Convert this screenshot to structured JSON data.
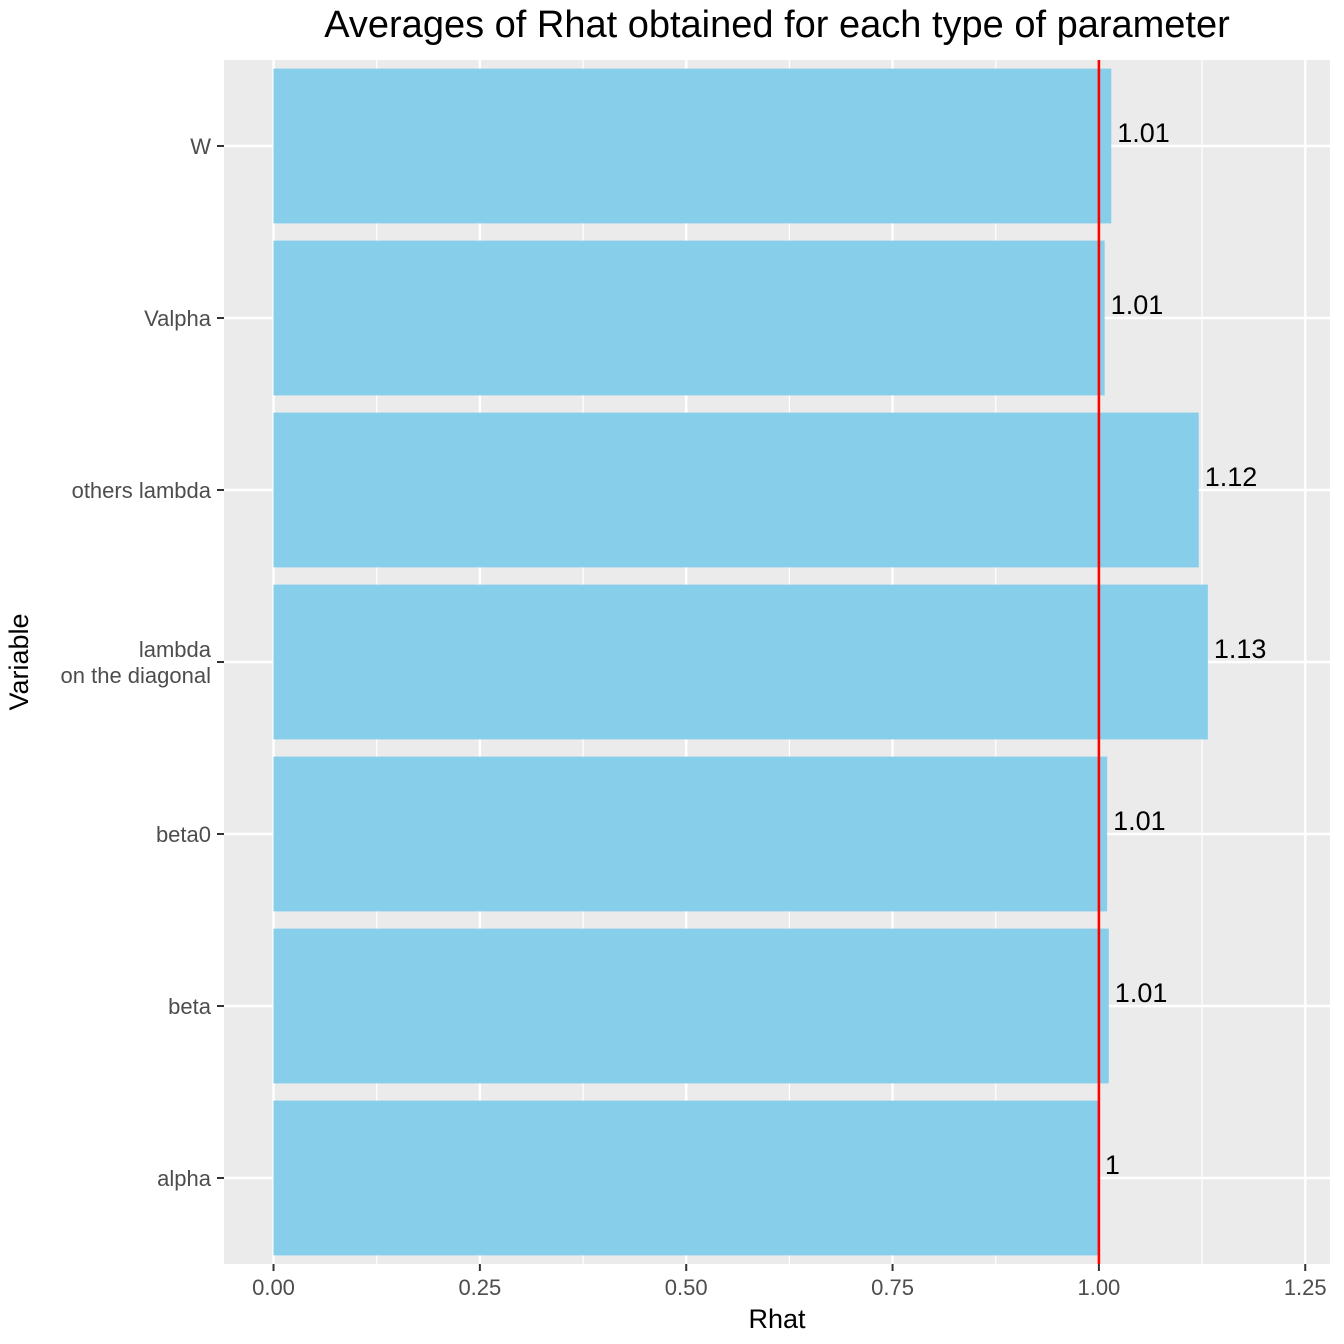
{
  "chart_data": {
    "type": "bar",
    "orientation": "horizontal",
    "title": "Averages of Rhat obtained for each type of parameter",
    "xlabel": "Rhat",
    "ylabel": "Variable",
    "categories": [
      [
        "alpha"
      ],
      [
        "beta"
      ],
      [
        "beta0"
      ],
      [
        "lambda",
        "on the diagonal"
      ],
      [
        "others lambda"
      ],
      [
        "Valpha"
      ],
      [
        "W"
      ]
    ],
    "values": [
      1.0,
      1.012,
      1.01,
      1.132,
      1.121,
      1.007,
      1.015
    ],
    "data_labels": [
      "1",
      "1.01",
      "1.01",
      "1.13",
      "1.12",
      "1.01",
      "1.01"
    ],
    "xlim": [
      -0.06,
      1.28
    ],
    "x_ticks": [
      0.0,
      0.25,
      0.5,
      0.75,
      1.0,
      1.25
    ],
    "x_tick_labels": [
      "0.00",
      "0.25",
      "0.50",
      "0.75",
      "1.00",
      "1.25"
    ],
    "reference_line": {
      "x": 1.0,
      "color": "#ff0000"
    },
    "bar_color": "#87ceeb",
    "panel_background": "#ebebeb",
    "grid": true,
    "legend": "none"
  }
}
